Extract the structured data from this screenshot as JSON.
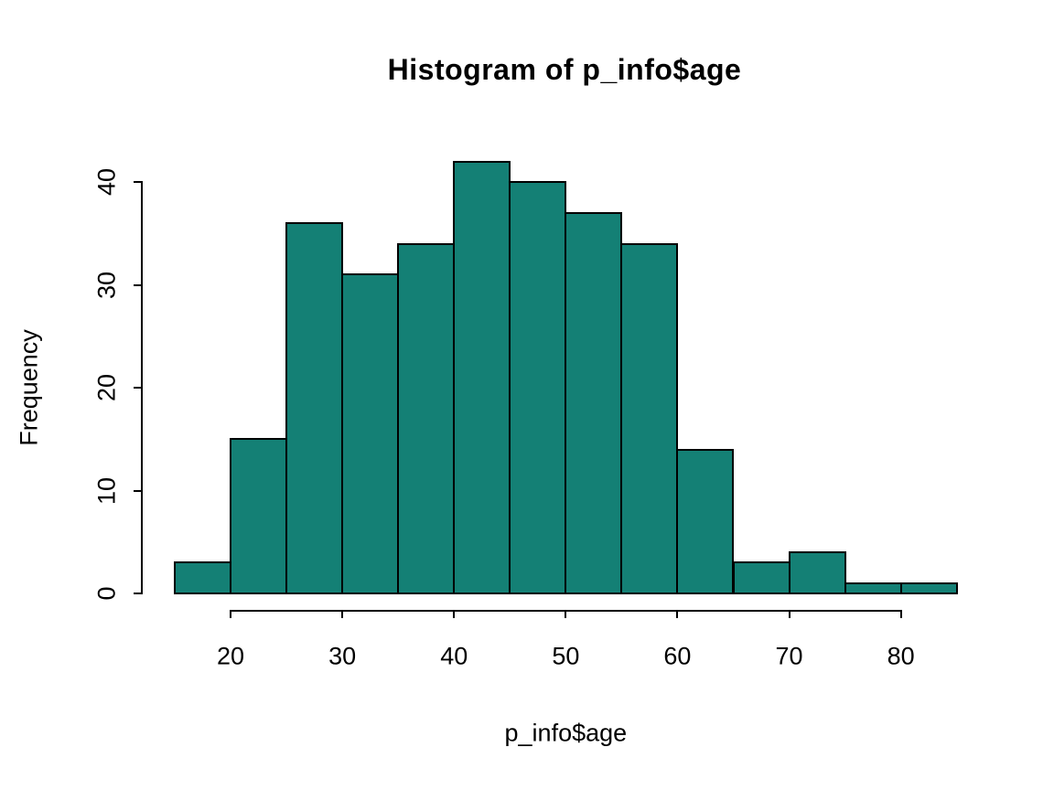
{
  "page": {
    "background": "#ffffff"
  },
  "chart_data": {
    "type": "bar",
    "subtype": "histogram",
    "title": "Histogram of p_info$age",
    "xlabel": "p_info$age",
    "ylabel": "Frequency",
    "bin_width": 5,
    "bin_edges": [
      15,
      20,
      25,
      30,
      35,
      40,
      45,
      50,
      55,
      60,
      65,
      70,
      75,
      80,
      85
    ],
    "categories": [
      "15-20",
      "20-25",
      "25-30",
      "30-35",
      "35-40",
      "40-45",
      "45-50",
      "50-55",
      "55-60",
      "60-65",
      "65-70",
      "70-75",
      "75-80",
      "80-85"
    ],
    "values": [
      3,
      15,
      36,
      31,
      34,
      42,
      40,
      37,
      34,
      14,
      3,
      4,
      1,
      1
    ],
    "x_ticks": [
      20,
      30,
      40,
      50,
      60,
      70,
      80
    ],
    "y_ticks": [
      0,
      10,
      20,
      30,
      40
    ],
    "xlim": [
      15,
      85
    ],
    "ylim": [
      0,
      42
    ],
    "grid": false,
    "legend": "none",
    "bar_fill": "#148075",
    "bar_border": "#000000",
    "axis_color": "#000000",
    "text_color": "#000000"
  }
}
